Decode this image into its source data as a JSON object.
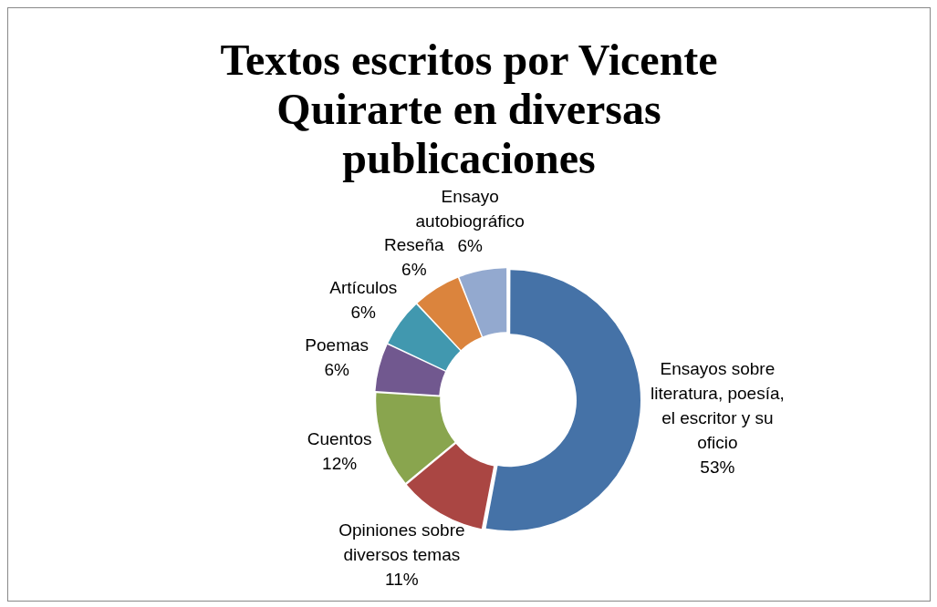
{
  "chart_data": {
    "type": "donut",
    "title": "Textos escritos por Vicente Quirarte en diversas publicaciones",
    "categories": [
      "Ensayos sobre literatura, poesía, el escritor y su oficio",
      "Opiniones sobre diversos temas",
      "Cuentos",
      "Poemas",
      "Artículos",
      "Reseña",
      "Ensayo autobiográfico"
    ],
    "values": [
      53,
      11,
      12,
      6,
      6,
      6,
      6
    ],
    "value_labels": [
      "53%",
      "11%",
      "12%",
      "6%",
      "6%",
      "6%",
      "6%"
    ],
    "colors": [
      "#4572a7",
      "#aa4643",
      "#89a54e",
      "#71588f",
      "#4198af",
      "#db843d",
      "#93a9cf"
    ],
    "legend": false
  }
}
